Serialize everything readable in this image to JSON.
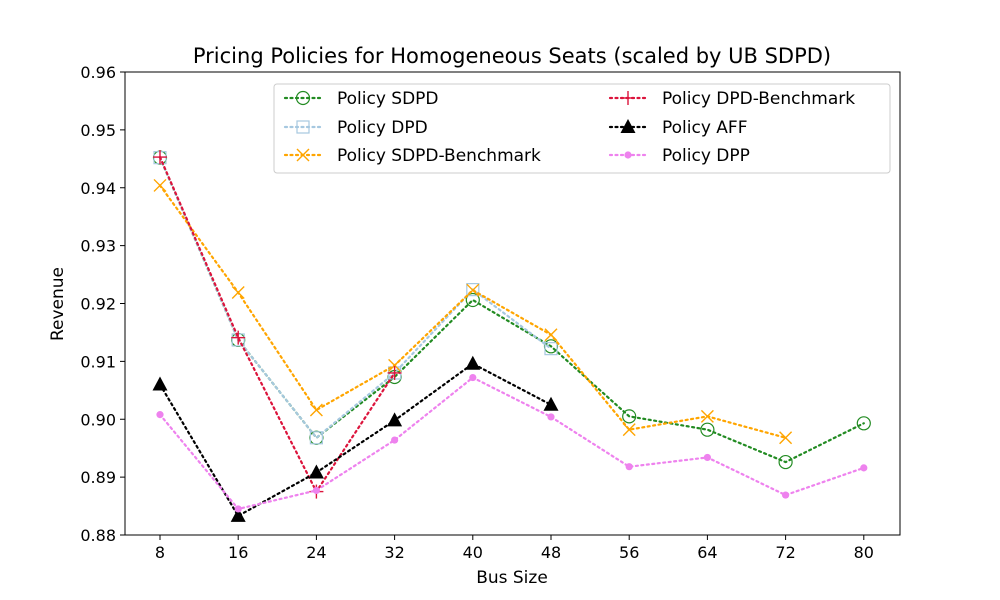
{
  "chart_data": {
    "type": "line",
    "title": "Pricing Policies for Homogeneous Seats (scaled by UB SDPD)",
    "xlabel": "Bus Size",
    "ylabel": "Revenue",
    "x": [
      8,
      16,
      24,
      32,
      40,
      48,
      56,
      64,
      72,
      80
    ],
    "x_ticks": [
      "8",
      "16",
      "24",
      "32",
      "40",
      "48",
      "56",
      "64",
      "72",
      "80"
    ],
    "ylim": [
      0.88,
      0.96
    ],
    "y_ticks": [
      "0.88",
      "0.89",
      "0.90",
      "0.91",
      "0.92",
      "0.93",
      "0.94",
      "0.95",
      "0.96"
    ],
    "grid": false,
    "legend_position": "top-center",
    "series": [
      {
        "name": "Policy SDPD",
        "color": "#228B22",
        "marker": "circle-open",
        "values": [
          0.9452,
          0.9137,
          0.8968,
          0.9073,
          0.9206,
          0.9126,
          0.9005,
          0.8982,
          0.8926,
          0.8993
        ]
      },
      {
        "name": "Policy DPD",
        "color": "#a6c8e0",
        "marker": "square-open",
        "values": [
          0.9452,
          0.9137,
          0.8968,
          0.908,
          0.9224,
          0.9122,
          null,
          null,
          null,
          null
        ]
      },
      {
        "name": "Policy SDPD-Benchmark",
        "color": "#FFA500",
        "marker": "x",
        "values": [
          0.9404,
          0.9219,
          0.9016,
          0.9093,
          0.9223,
          0.9146,
          0.8982,
          0.9005,
          0.8968,
          null
        ]
      },
      {
        "name": "Policy DPD-Benchmark",
        "color": "#DC143C",
        "marker": "plus",
        "values": [
          0.9453,
          0.9141,
          0.8875,
          0.908,
          null,
          null,
          null,
          null,
          null,
          null
        ]
      },
      {
        "name": "Policy AFF",
        "color": "#000000",
        "marker": "triangle",
        "values": [
          0.906,
          0.8833,
          0.8908,
          0.8998,
          0.9096,
          0.9025,
          null,
          null,
          null,
          null
        ]
      },
      {
        "name": "Policy DPP",
        "color": "#EE82EE",
        "marker": "dot",
        "values": [
          0.9008,
          0.8845,
          0.8877,
          0.8964,
          0.9072,
          0.9004,
          0.8918,
          0.8934,
          0.8869,
          0.8916
        ]
      }
    ]
  }
}
